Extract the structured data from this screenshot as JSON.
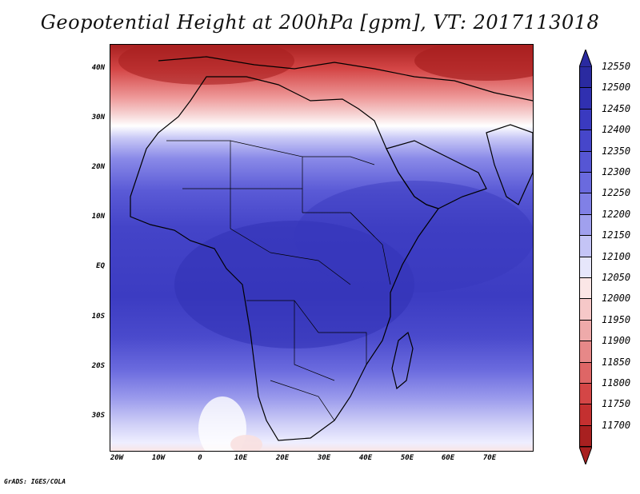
{
  "title": "Geopotential Height at 200hPa [gpm], VT: 2017113018",
  "footer": "GrADS: IGES/COLA",
  "lat_labels": [
    "40N",
    "30N",
    "20N",
    "10N",
    "EQ",
    "10S",
    "20S",
    "30S"
  ],
  "lon_labels": [
    "20W",
    "10W",
    "0",
    "10E",
    "20E",
    "30E",
    "40E",
    "50E",
    "60E",
    "70E"
  ],
  "colorbar": {
    "levels": [
      "12550",
      "12500",
      "12450",
      "12400",
      "12350",
      "12300",
      "12250",
      "12200",
      "12150",
      "12100",
      "12050",
      "12000",
      "11950",
      "11900",
      "11850",
      "11800",
      "11750",
      "11700"
    ],
    "colors": [
      "#2a2aa0",
      "#3030b0",
      "#3a3ac0",
      "#4646ca",
      "#5656d4",
      "#6a6ade",
      "#8080e6",
      "#a0a0ee",
      "#c4c4f6",
      "#e6e6fb",
      "#fbe6e6",
      "#f6c8c8",
      "#eeaaaa",
      "#e68888",
      "#de6666",
      "#d44646",
      "#c43030",
      "#a82020"
    ],
    "top_arrow_color": "#2a2aa0",
    "bottom_arrow_color": "#a82020"
  }
}
